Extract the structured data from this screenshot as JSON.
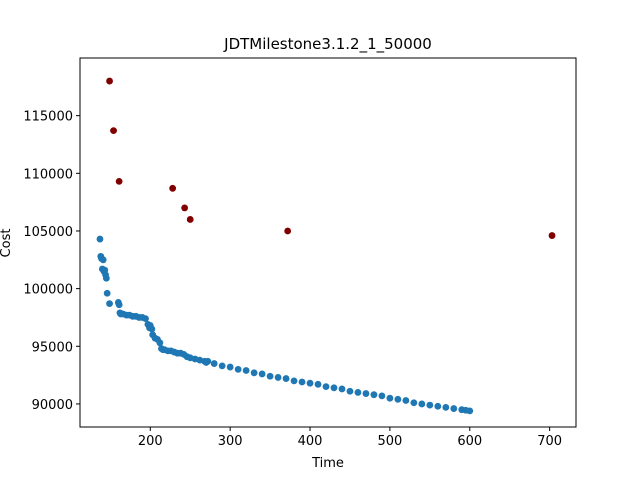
{
  "chart_data": {
    "type": "scatter",
    "title": "JDTMilestone3.1.2_1_50000",
    "xlabel": "Time",
    "ylabel": "Cost",
    "xlim": [
      112,
      733
    ],
    "ylim": [
      88000,
      120000
    ],
    "xticks": [
      200,
      300,
      400,
      500,
      600,
      700
    ],
    "yticks": [
      90000,
      95000,
      100000,
      105000,
      110000,
      115000
    ],
    "grid": false,
    "colors": {
      "front": "#1f77b4",
      "outliers": "#800000"
    },
    "series": [
      {
        "x": [
          137,
          138,
          139,
          140,
          141,
          142,
          143,
          144,
          145,
          146,
          149,
          160,
          161,
          162,
          163,
          166,
          170,
          174,
          178,
          182,
          186,
          190,
          194,
          197,
          199,
          200,
          202,
          203,
          206,
          209,
          212,
          214,
          216,
          218,
          222,
          226,
          230,
          234,
          238,
          242,
          246,
          250,
          256,
          262,
          268,
          270,
          272,
          280,
          290,
          300,
          310,
          320,
          330,
          340,
          350,
          360,
          370,
          380,
          390,
          400,
          410,
          420,
          430,
          440,
          450,
          460,
          470,
          480,
          490,
          500,
          510,
          520,
          530,
          540,
          550,
          560,
          570,
          580,
          590,
          595,
          600
        ],
        "y": [
          104300,
          102800,
          102600,
          101700,
          102500,
          101500,
          101600,
          101200,
          100900,
          99600,
          98700,
          98800,
          98600,
          97900,
          97800,
          97800,
          97700,
          97700,
          97600,
          97600,
          97500,
          97500,
          97400,
          96900,
          96600,
          96800,
          96500,
          96000,
          95700,
          95600,
          95300,
          94800,
          94700,
          94700,
          94600,
          94600,
          94500,
          94400,
          94400,
          94300,
          94100,
          94000,
          93900,
          93800,
          93700,
          93600,
          93700,
          93500,
          93300,
          93200,
          93000,
          92900,
          92700,
          92600,
          92400,
          92300,
          92200,
          92000,
          91900,
          91800,
          91700,
          91500,
          91400,
          91300,
          91100,
          91000,
          90900,
          90800,
          90700,
          90500,
          90400,
          90300,
          90100,
          90000,
          89900,
          89800,
          89700,
          89600,
          89500,
          89450,
          89400
        ]
      },
      {
        "x": [
          149,
          154,
          161,
          228,
          243,
          250,
          372,
          703
        ],
        "y": [
          118000,
          113700,
          109300,
          108700,
          107000,
          106000,
          105000,
          104600
        ]
      }
    ]
  }
}
